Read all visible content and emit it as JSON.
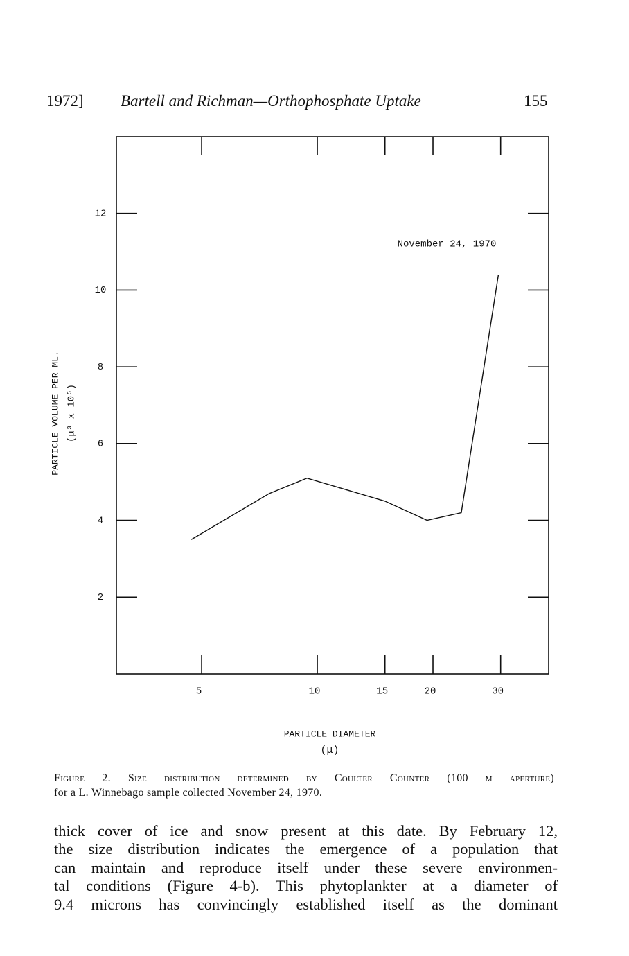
{
  "header": {
    "left": "1972]",
    "title": "Bartell and Richman—Orthophosphate Uptake",
    "page": "155"
  },
  "chart_data": {
    "type": "line",
    "x": [
      4.7,
      7.5,
      9.4,
      15,
      19.3,
      23.7,
      29.6
    ],
    "values": [
      3.5,
      4.7,
      5.1,
      4.5,
      4.0,
      4.2,
      10.4
    ],
    "color": "#111",
    "xlim": [
      3,
      40
    ],
    "xscale": "log",
    "xticks": [
      5,
      10,
      15,
      20,
      30
    ],
    "ylim": [
      0,
      14
    ],
    "yticks": [
      2,
      4,
      6,
      8,
      10,
      12
    ],
    "grid": false,
    "annotation": "November 24, 1970",
    "ylabel": [
      "PARTICLE VOLUME PER ML.",
      "(μ³ x 10⁵)"
    ],
    "xlabel": [
      "PARTICLE DIAMETER",
      "(μ)"
    ]
  },
  "caption": [
    "Figure 2. Size distribution determined by Coulter Counter (100 μ aperture)",
    "for a L. Winnebago sample collected November 24, 1970."
  ],
  "body": [
    "thick cover of ice and snow present at this date. By February 12,",
    "the size distribution indicates the emergence of a population that",
    "can maintain and reproduce itself under these severe environmen-",
    "tal conditions (Figure 4-b). This phytoplankter at a diameter of",
    "9.4 microns has convincingly established itself as the dominant"
  ]
}
